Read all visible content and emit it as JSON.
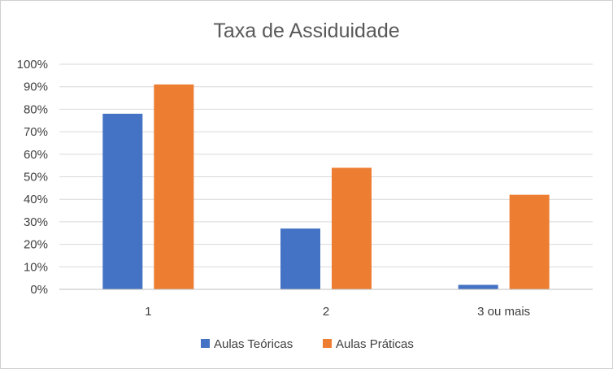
{
  "chart_data": {
    "type": "bar",
    "title": "Taxa de Assiduidade",
    "categories": [
      "1",
      "2",
      "3 ou mais"
    ],
    "series": [
      {
        "name": "Aulas Teóricas",
        "values": [
          78,
          27,
          2
        ],
        "color": "#4472C4"
      },
      {
        "name": "Aulas Práticas",
        "values": [
          91,
          54,
          42
        ],
        "color": "#ED7D31"
      }
    ],
    "ylim": [
      0,
      100
    ],
    "yticks": [
      "0%",
      "10%",
      "20%",
      "30%",
      "40%",
      "50%",
      "60%",
      "70%",
      "80%",
      "90%",
      "100%"
    ],
    "y_unit": "%",
    "grid": true,
    "legend_position": "bottom",
    "xlabel": "",
    "ylabel": ""
  }
}
